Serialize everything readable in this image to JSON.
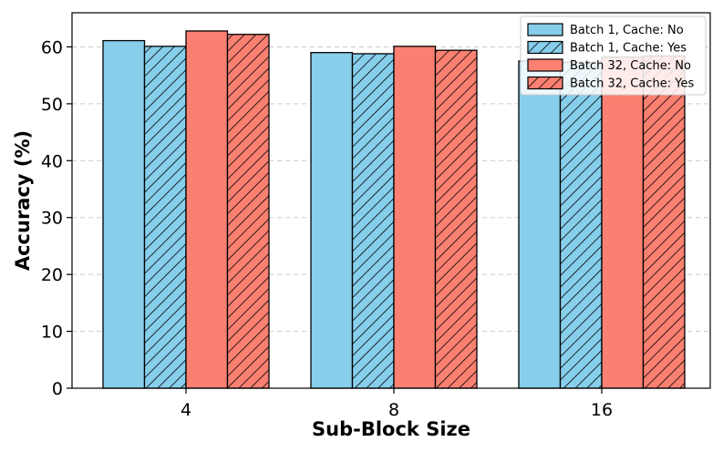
{
  "chart_data": {
    "type": "bar",
    "categories": [
      "4",
      "8",
      "16"
    ],
    "xlabel": "Sub-Block Size",
    "ylabel": "Accuracy (%)",
    "ylim": [
      0,
      66
    ],
    "yticks": [
      0,
      10,
      20,
      30,
      40,
      50,
      60
    ],
    "grid": "y-dashed",
    "legend_position": "top-right",
    "series": [
      {
        "name": "Batch 1, Cache: No",
        "values": [
          61.1,
          59.0,
          57.5
        ],
        "color": "#87ceeb",
        "hatch": false
      },
      {
        "name": "Batch 1, Cache: Yes",
        "values": [
          60.1,
          58.8,
          57.3
        ],
        "color": "#87ceeb",
        "hatch": true
      },
      {
        "name": "Batch 32, Cache: No",
        "values": [
          62.8,
          60.1,
          58.2
        ],
        "color": "#fa8072",
        "hatch": false
      },
      {
        "name": "Batch 32, Cache: Yes",
        "values": [
          62.2,
          59.4,
          58.4
        ],
        "color": "#fa8072",
        "hatch": true
      }
    ]
  }
}
